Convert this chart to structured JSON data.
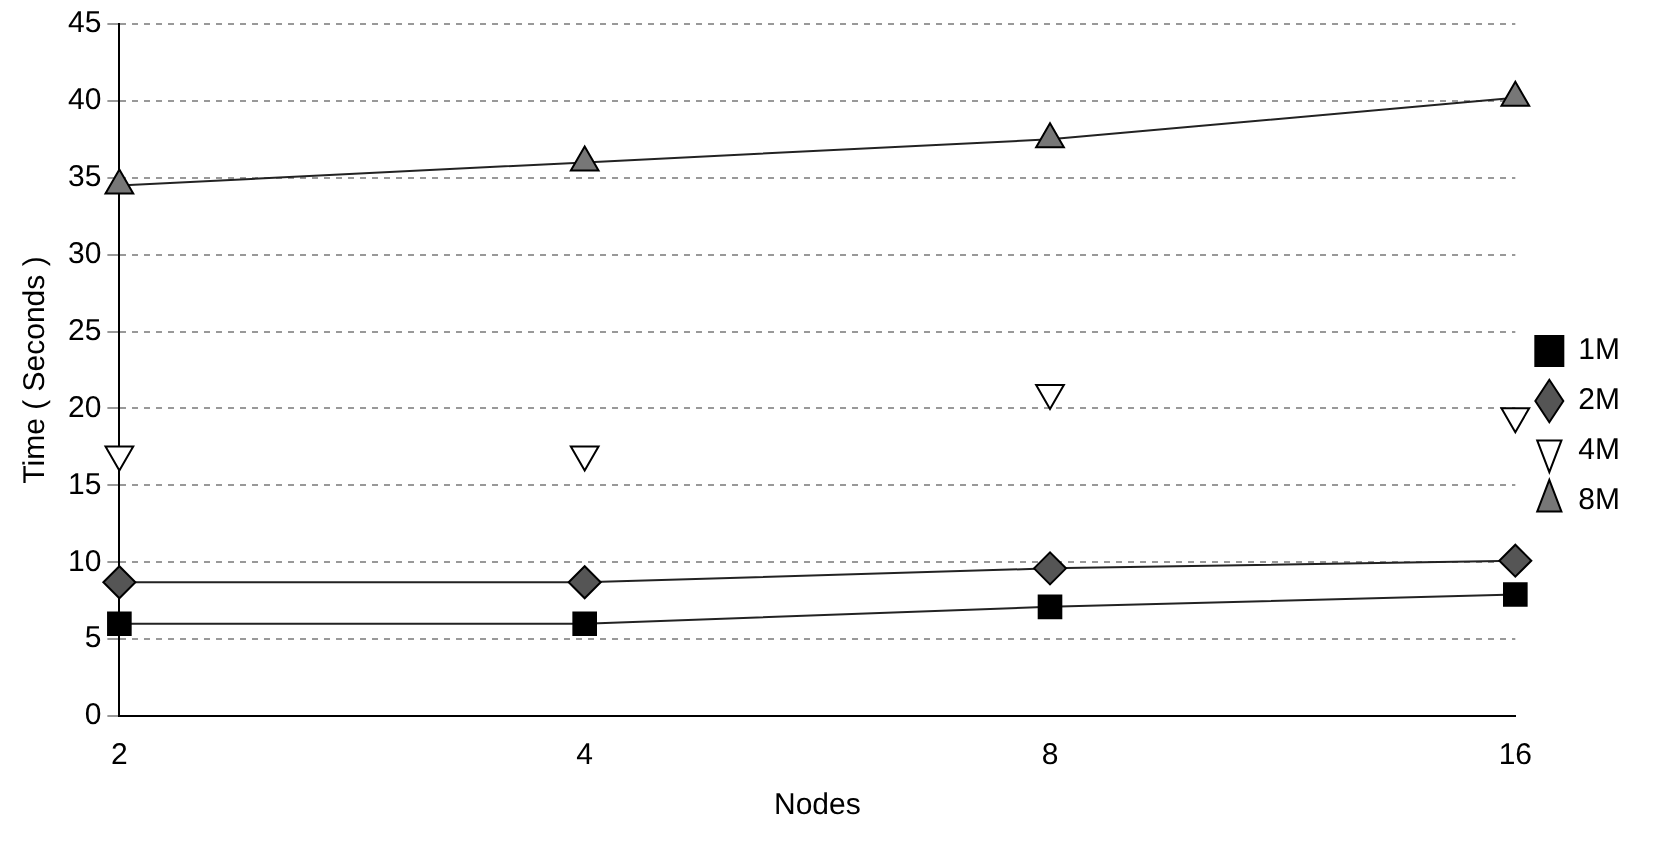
{
  "chart_data": {
    "type": "line",
    "xlabel": "Nodes",
    "ylabel": "Time ( Seconds )",
    "categories": [
      "2",
      "4",
      "8",
      "16"
    ],
    "ylim": [
      0,
      45
    ],
    "yticks": [
      0,
      5,
      10,
      15,
      20,
      25,
      30,
      35,
      40,
      45
    ],
    "grid": "y",
    "legend": "right",
    "series": [
      {
        "name": "1M",
        "color": "#000000",
        "marker": "square",
        "values": [
          6,
          6,
          7.1,
          7.9
        ]
      },
      {
        "name": "2M",
        "color": "#555555",
        "marker": "diamond",
        "values": [
          8.7,
          8.7,
          9.6,
          10.1
        ]
      },
      {
        "name": "4M",
        "type": "scatter",
        "color": "#ffffff",
        "marker": "triangle",
        "values": [
          17,
          17,
          21,
          19.5
        ]
      },
      {
        "name": "8M",
        "color": "#777777",
        "marker": "triangle",
        "values": [
          34.5,
          36,
          37.5,
          40.2
        ]
      }
    ]
  }
}
